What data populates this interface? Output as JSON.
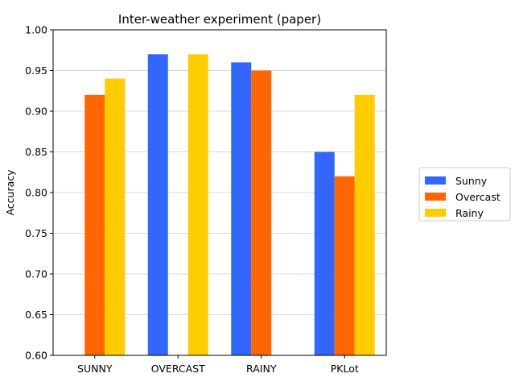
{
  "chart_data": {
    "type": "bar",
    "title": "Inter-weather experiment (paper)",
    "xlabel": "",
    "ylabel": "Accuracy",
    "categories": [
      "SUNNY",
      "OVERCAST",
      "RAINY",
      "PKLot"
    ],
    "series": [
      {
        "name": "Sunny",
        "color": "#3366ff",
        "values": [
          null,
          0.97,
          0.96,
          0.85
        ]
      },
      {
        "name": "Overcast",
        "color": "#ff6600",
        "values": [
          0.92,
          null,
          0.95,
          0.82
        ]
      },
      {
        "name": "Rainy",
        "color": "#ffcc00",
        "values": [
          0.94,
          0.97,
          null,
          0.92
        ]
      }
    ],
    "ylim": [
      0.6,
      1.0
    ],
    "yticks": [
      "0.60",
      "0.65",
      "0.70",
      "0.75",
      "0.80",
      "0.85",
      "0.90",
      "0.95",
      "1.00"
    ],
    "grid": "horizontal",
    "legend_position": "right"
  }
}
